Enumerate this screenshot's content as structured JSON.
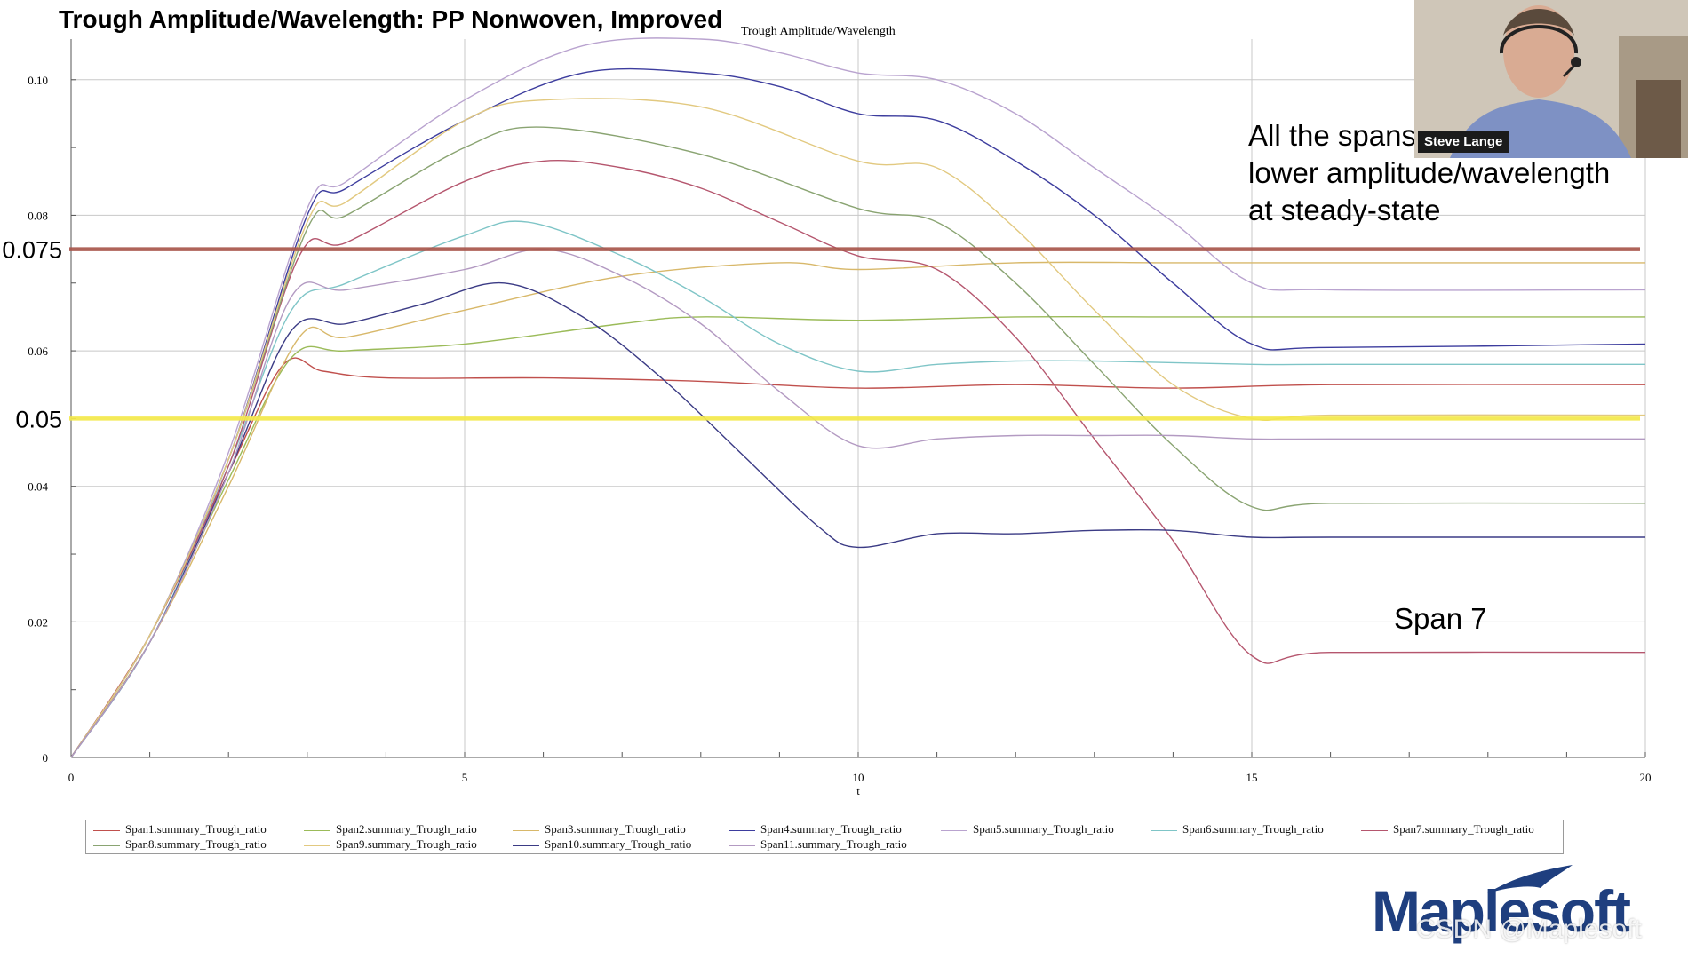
{
  "slide": {
    "title": "Trough Amplitude/Wavelength: PP Nonwoven, Improved",
    "annotation_lines": [
      "All the spans",
      "lower amplitude/wavelength",
      "at steady-state"
    ],
    "span7_label": "Span 7",
    "big_tick_labels": [
      "0.075",
      "0.05"
    ]
  },
  "webcam": {
    "name": "Steve Lange"
  },
  "logo": {
    "text": "Maplesoft"
  },
  "watermark": {
    "text": "CSDN @Maplesoft"
  },
  "colors": {
    "reference_brown": "#a9564c",
    "reference_yellow": "#f4e94a",
    "grid": "#c8c8c8",
    "axis": "#555555"
  },
  "chart_data": {
    "type": "line",
    "title": "Trough Amplitude/Wavelength",
    "xlabel": "t",
    "ylabel": "",
    "xlim": [
      0,
      20
    ],
    "ylim": [
      0,
      0.106
    ],
    "x_ticks": [
      0,
      5,
      10,
      15,
      20
    ],
    "y_ticks": [
      0,
      0.02,
      0.04,
      0.06,
      0.08,
      0.1
    ],
    "y_tick_labels": [
      "0",
      "0.02",
      "0.04",
      "0.06",
      "0.08",
      "0.10"
    ],
    "grid": true,
    "legend_position": "bottom",
    "reference_lines": [
      {
        "y": 0.075,
        "color": "#a9564c"
      },
      {
        "y": 0.05,
        "color": "#f4e94a"
      }
    ],
    "series": [
      {
        "name": "Span1.summary_Trough_ratio",
        "color": "#c0504d",
        "x": [
          0,
          1,
          2,
          2.7,
          3.2,
          4,
          6,
          8,
          10,
          12,
          14,
          16,
          20
        ],
        "y": [
          0,
          0.018,
          0.042,
          0.058,
          0.057,
          0.056,
          0.056,
          0.0555,
          0.0545,
          0.055,
          0.0545,
          0.055,
          0.055
        ]
      },
      {
        "name": "Span2.summary_Trough_ratio",
        "color": "#9bbb59",
        "x": [
          0,
          1,
          2,
          2.8,
          3.5,
          5,
          7,
          8,
          10,
          12,
          14,
          16,
          20
        ],
        "y": [
          0,
          0.017,
          0.041,
          0.059,
          0.06,
          0.061,
          0.064,
          0.065,
          0.0645,
          0.065,
          0.065,
          0.065,
          0.065
        ]
      },
      {
        "name": "Span3.summary_Trough_ratio",
        "color": "#d8b86a",
        "x": [
          0,
          1,
          2,
          2.9,
          3.5,
          5,
          7,
          9,
          10,
          12,
          14,
          16,
          20
        ],
        "y": [
          0,
          0.017,
          0.04,
          0.062,
          0.062,
          0.066,
          0.071,
          0.073,
          0.072,
          0.073,
          0.073,
          0.073,
          0.073
        ]
      },
      {
        "name": "Span4.summary_Trough_ratio",
        "color": "#3d3d9e",
        "x": [
          0,
          1,
          2,
          3,
          3.5,
          5,
          6.5,
          8,
          9,
          10,
          11,
          12,
          13,
          14,
          15,
          16,
          20
        ],
        "y": [
          0,
          0.018,
          0.044,
          0.08,
          0.084,
          0.094,
          0.101,
          0.101,
          0.099,
          0.095,
          0.094,
          0.088,
          0.08,
          0.07,
          0.061,
          0.0605,
          0.061
        ]
      },
      {
        "name": "Span5.summary_Trough_ratio",
        "color": "#b9a3cf",
        "x": [
          0,
          1,
          2,
          3,
          3.5,
          5,
          6.5,
          8,
          9,
          10,
          11,
          12,
          13,
          14,
          15,
          16,
          20
        ],
        "y": [
          0,
          0.018,
          0.045,
          0.081,
          0.085,
          0.097,
          0.105,
          0.106,
          0.104,
          0.101,
          0.1,
          0.095,
          0.087,
          0.079,
          0.07,
          0.069,
          0.069
        ]
      },
      {
        "name": "Span6.summary_Trough_ratio",
        "color": "#7fc5c7",
        "x": [
          0,
          1,
          2,
          2.8,
          3.5,
          5,
          5.8,
          7,
          8,
          9,
          10,
          11,
          12,
          13,
          15,
          16,
          20
        ],
        "y": [
          0,
          0.017,
          0.043,
          0.066,
          0.07,
          0.077,
          0.079,
          0.074,
          0.068,
          0.061,
          0.057,
          0.058,
          0.0585,
          0.0585,
          0.058,
          0.058,
          0.058
        ]
      },
      {
        "name": "Span7.summary_Trough_ratio",
        "color": "#b5566e",
        "x": [
          0,
          1,
          2,
          2.9,
          3.5,
          5,
          6,
          7,
          8,
          9,
          10,
          11,
          12,
          13,
          14,
          15,
          16,
          20
        ],
        "y": [
          0,
          0.018,
          0.043,
          0.074,
          0.076,
          0.085,
          0.088,
          0.087,
          0.084,
          0.079,
          0.074,
          0.072,
          0.062,
          0.047,
          0.032,
          0.015,
          0.0155,
          0.0155
        ]
      },
      {
        "name": "Span8.summary_Trough_ratio",
        "color": "#8aa472",
        "x": [
          0,
          1,
          2,
          3,
          3.5,
          5,
          6,
          8,
          10,
          11,
          12,
          13,
          14,
          15,
          16,
          20
        ],
        "y": [
          0,
          0.018,
          0.044,
          0.078,
          0.08,
          0.09,
          0.093,
          0.089,
          0.081,
          0.079,
          0.07,
          0.058,
          0.046,
          0.037,
          0.0375,
          0.0375
        ]
      },
      {
        "name": "Span9.summary_Trough_ratio",
        "color": "#e2c980",
        "x": [
          0,
          1,
          2,
          3,
          3.5,
          5,
          6,
          8,
          10,
          11,
          12,
          13,
          14,
          15,
          16,
          20
        ],
        "y": [
          0,
          0.018,
          0.044,
          0.079,
          0.082,
          0.094,
          0.097,
          0.096,
          0.088,
          0.087,
          0.078,
          0.066,
          0.055,
          0.05,
          0.0505,
          0.0505
        ]
      },
      {
        "name": "Span10.summary_Trough_ratio",
        "color": "#3b3b85",
        "x": [
          0,
          1,
          2,
          2.8,
          3.5,
          4.5,
          5.5,
          6.5,
          7.5,
          8.5,
          9.5,
          10,
          11,
          12,
          13,
          14,
          15,
          16,
          20
        ],
        "y": [
          0,
          0.017,
          0.042,
          0.063,
          0.064,
          0.067,
          0.07,
          0.065,
          0.056,
          0.045,
          0.034,
          0.031,
          0.033,
          0.033,
          0.0335,
          0.0335,
          0.0325,
          0.0325,
          0.0325
        ]
      },
      {
        "name": "Span11.summary_Trough_ratio",
        "color": "#b39ac2",
        "x": [
          0,
          1,
          2,
          2.8,
          3.5,
          5,
          6,
          7,
          8,
          9,
          10,
          11,
          12,
          13,
          14,
          15,
          16,
          20
        ],
        "y": [
          0,
          0.017,
          0.042,
          0.068,
          0.069,
          0.072,
          0.075,
          0.071,
          0.064,
          0.054,
          0.046,
          0.047,
          0.0475,
          0.0475,
          0.0475,
          0.047,
          0.047,
          0.047
        ]
      }
    ]
  }
}
